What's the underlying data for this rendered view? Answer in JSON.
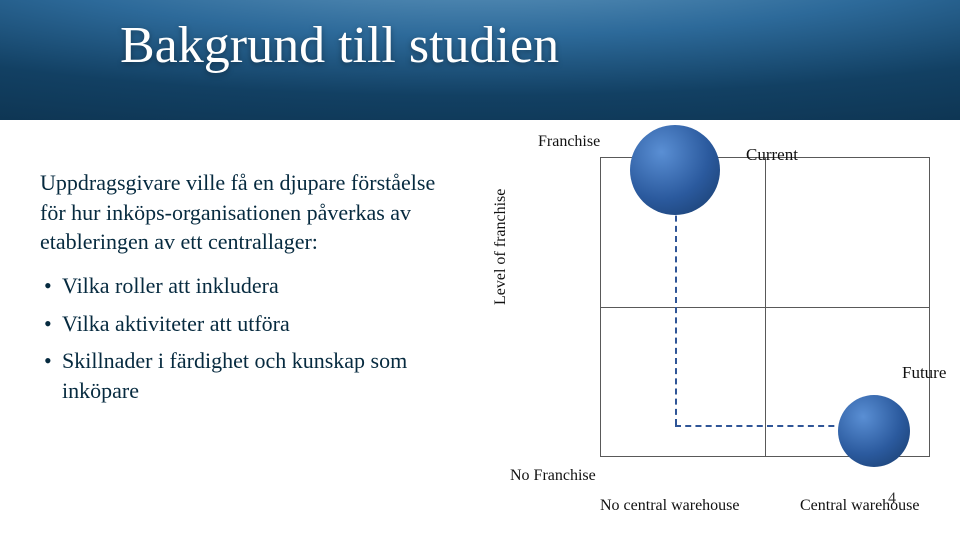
{
  "title": "Bakgrund till studien",
  "intro": "Uppdragsgivare ville få en djupare förståelse för hur inköps-organisationen påverkas av etableringen av ett centrallager:",
  "bullets": [
    "Vilka roller att inkludera",
    "Vilka aktiviteter att utföra",
    "Skillnader i färdighet och kunskap som inköpare"
  ],
  "chart": {
    "type": "quadrant",
    "y_axis_label": "Level of franchise",
    "y_top_label": "Franchise",
    "y_bottom_label": "No Franchise",
    "x_left_label": "No central warehouse",
    "x_right_label": "Central warehouse",
    "grid_border_color": "#595959",
    "dashed_color": "#2f5597",
    "circle_gradient": [
      "#5a8fd4",
      "#2b5a9e",
      "#173a68"
    ],
    "points": {
      "current": {
        "label": "Current",
        "quadrant": "top-left"
      },
      "future": {
        "label": "Future",
        "quadrant": "bottom-right"
      }
    },
    "background_color": "#ffffff",
    "label_fontsize": 16
  },
  "page_number": "4",
  "title_gradient": [
    "#6fa3c7",
    "#2d6a9a",
    "#124063",
    "#0a2a42"
  ],
  "title_color": "#ffffff",
  "body_color": "#062a3f",
  "title_fontsize": 52,
  "body_fontsize": 22
}
